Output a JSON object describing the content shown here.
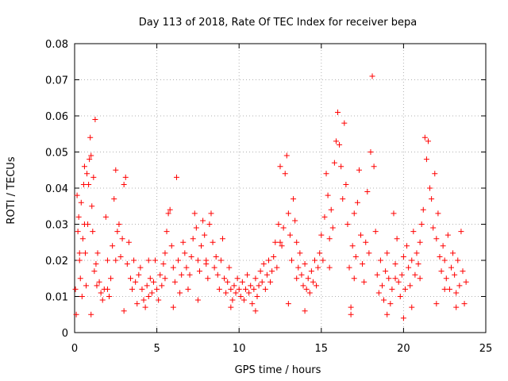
{
  "chart_data": {
    "type": "scatter",
    "title": "Day 113 of 2018, Rate Of TEC Index for receiver bepa",
    "xlabel": "GPS time / hours",
    "ylabel": "ROTI / TECUs",
    "xlim": [
      0,
      25
    ],
    "ylim": [
      0,
      0.08
    ],
    "x_ticks": [
      0,
      5,
      10,
      15,
      20,
      25
    ],
    "y_ticks": [
      0,
      0.01,
      0.02,
      0.03,
      0.04,
      0.05,
      0.06,
      0.07,
      0.08
    ],
    "x_tick_labels": [
      "0",
      "5",
      "10",
      "15",
      "20",
      "25"
    ],
    "y_tick_labels": [
      "0",
      "0.01",
      "0.02",
      "0.03",
      "0.04",
      "0.05",
      "0.06",
      "0.07",
      "0.08"
    ],
    "grid": true,
    "marker": "+",
    "color": "#ff0000",
    "series": [
      {
        "name": "ROTI",
        "points": [
          [
            0.05,
            0.012
          ],
          [
            0.1,
            0.005
          ],
          [
            0.15,
            0.038
          ],
          [
            0.2,
            0.028
          ],
          [
            0.25,
            0.032
          ],
          [
            0.3,
            0.02
          ],
          [
            0.35,
            0.015
          ],
          [
            0.4,
            0.036
          ],
          [
            0.45,
            0.01
          ],
          [
            0.5,
            0.026
          ],
          [
            0.55,
            0.041
          ],
          [
            0.6,
            0.046
          ],
          [
            0.65,
            0.022
          ],
          [
            0.7,
            0.013
          ],
          [
            0.75,
            0.044
          ],
          [
            0.8,
            0.03
          ],
          [
            0.85,
            0.041
          ],
          [
            0.9,
            0.048
          ],
          [
            0.95,
            0.054
          ],
          [
            1.0,
            0.049
          ],
          [
            1.05,
            0.035
          ],
          [
            1.1,
            0.028
          ],
          [
            1.15,
            0.043
          ],
          [
            1.2,
            0.017
          ],
          [
            1.25,
            0.059
          ],
          [
            1.3,
            0.019
          ],
          [
            1.35,
            0.013
          ],
          [
            1.4,
            0.022
          ],
          [
            1.5,
            0.014
          ],
          [
            1.6,
            0.011
          ],
          [
            1.7,
            0.009
          ],
          [
            1.8,
            0.012
          ],
          [
            1.9,
            0.032
          ],
          [
            2.0,
            0.012
          ],
          [
            2.1,
            0.01
          ],
          [
            2.2,
            0.015
          ],
          [
            2.3,
            0.024
          ],
          [
            2.4,
            0.037
          ],
          [
            2.5,
            0.045
          ],
          [
            2.6,
            0.028
          ],
          [
            2.7,
            0.03
          ],
          [
            2.8,
            0.021
          ],
          [
            2.9,
            0.026
          ],
          [
            3.0,
            0.041
          ],
          [
            3.1,
            0.043
          ],
          [
            3.2,
            0.019
          ],
          [
            3.3,
            0.025
          ],
          [
            3.4,
            0.015
          ],
          [
            3.5,
            0.012
          ],
          [
            3.6,
            0.02
          ],
          [
            3.7,
            0.014
          ],
          [
            3.8,
            0.008
          ],
          [
            3.9,
            0.016
          ],
          [
            4.0,
            0.018
          ],
          [
            4.1,
            0.012
          ],
          [
            4.2,
            0.009
          ],
          [
            4.3,
            0.007
          ],
          [
            4.4,
            0.013
          ],
          [
            4.5,
            0.01
          ],
          [
            4.6,
            0.015
          ],
          [
            4.7,
            0.011
          ],
          [
            4.8,
            0.014
          ],
          [
            4.9,
            0.02
          ],
          [
            5.0,
            0.012
          ],
          [
            5.1,
            0.009
          ],
          [
            5.2,
            0.016
          ],
          [
            5.3,
            0.013
          ],
          [
            5.4,
            0.019
          ],
          [
            5.5,
            0.022
          ],
          [
            5.6,
            0.028
          ],
          [
            5.7,
            0.033
          ],
          [
            5.8,
            0.034
          ],
          [
            5.9,
            0.024
          ],
          [
            6.0,
            0.018
          ],
          [
            6.1,
            0.014
          ],
          [
            6.2,
            0.043
          ],
          [
            6.3,
            0.02
          ],
          [
            6.4,
            0.011
          ],
          [
            6.5,
            0.016
          ],
          [
            6.6,
            0.025
          ],
          [
            6.7,
            0.022
          ],
          [
            6.8,
            0.018
          ],
          [
            6.9,
            0.012
          ],
          [
            7.0,
            0.016
          ],
          [
            7.1,
            0.021
          ],
          [
            7.2,
            0.026
          ],
          [
            7.3,
            0.033
          ],
          [
            7.4,
            0.029
          ],
          [
            7.5,
            0.02
          ],
          [
            7.6,
            0.017
          ],
          [
            7.7,
            0.024
          ],
          [
            7.8,
            0.031
          ],
          [
            7.9,
            0.027
          ],
          [
            8.0,
            0.019
          ],
          [
            8.1,
            0.015
          ],
          [
            8.2,
            0.03
          ],
          [
            8.3,
            0.033
          ],
          [
            8.4,
            0.025
          ],
          [
            8.5,
            0.018
          ],
          [
            8.6,
            0.021
          ],
          [
            8.7,
            0.016
          ],
          [
            8.8,
            0.012
          ],
          [
            8.9,
            0.02
          ],
          [
            9.0,
            0.026
          ],
          [
            9.1,
            0.015
          ],
          [
            9.2,
            0.011
          ],
          [
            9.3,
            0.014
          ],
          [
            9.4,
            0.018
          ],
          [
            9.5,
            0.012
          ],
          [
            9.6,
            0.009
          ],
          [
            9.7,
            0.013
          ],
          [
            9.8,
            0.011
          ],
          [
            9.9,
            0.015
          ],
          [
            10.0,
            0.012
          ],
          [
            10.1,
            0.01
          ],
          [
            10.2,
            0.014
          ],
          [
            10.3,
            0.009
          ],
          [
            10.4,
            0.012
          ],
          [
            10.5,
            0.016
          ],
          [
            10.6,
            0.011
          ],
          [
            10.7,
            0.013
          ],
          [
            10.8,
            0.008
          ],
          [
            10.9,
            0.012
          ],
          [
            11.0,
            0.015
          ],
          [
            11.1,
            0.01
          ],
          [
            11.2,
            0.013
          ],
          [
            11.3,
            0.017
          ],
          [
            11.4,
            0.014
          ],
          [
            11.5,
            0.019
          ],
          [
            11.6,
            0.012
          ],
          [
            11.7,
            0.016
          ],
          [
            11.8,
            0.02
          ],
          [
            11.9,
            0.014
          ],
          [
            12.0,
            0.017
          ],
          [
            12.1,
            0.021
          ],
          [
            12.2,
            0.025
          ],
          [
            12.3,
            0.018
          ],
          [
            12.4,
            0.03
          ],
          [
            12.5,
            0.046
          ],
          [
            12.6,
            0.024
          ],
          [
            12.7,
            0.029
          ],
          [
            12.8,
            0.044
          ],
          [
            12.9,
            0.049
          ],
          [
            13.0,
            0.033
          ],
          [
            13.1,
            0.027
          ],
          [
            13.2,
            0.02
          ],
          [
            13.3,
            0.037
          ],
          [
            13.4,
            0.031
          ],
          [
            13.5,
            0.025
          ],
          [
            13.6,
            0.018
          ],
          [
            13.7,
            0.022
          ],
          [
            13.8,
            0.016
          ],
          [
            13.9,
            0.013
          ],
          [
            14.0,
            0.019
          ],
          [
            14.1,
            0.012
          ],
          [
            14.2,
            0.015
          ],
          [
            14.3,
            0.011
          ],
          [
            14.4,
            0.017
          ],
          [
            14.5,
            0.014
          ],
          [
            14.6,
            0.02
          ],
          [
            14.7,
            0.013
          ],
          [
            14.8,
            0.018
          ],
          [
            14.9,
            0.022
          ],
          [
            15.0,
            0.027
          ],
          [
            15.1,
            0.02
          ],
          [
            15.2,
            0.032
          ],
          [
            15.3,
            0.044
          ],
          [
            15.4,
            0.038
          ],
          [
            15.5,
            0.026
          ],
          [
            15.6,
            0.034
          ],
          [
            15.7,
            0.029
          ],
          [
            15.8,
            0.047
          ],
          [
            15.9,
            0.053
          ],
          [
            16.0,
            0.061
          ],
          [
            16.1,
            0.052
          ],
          [
            16.2,
            0.046
          ],
          [
            16.3,
            0.037
          ],
          [
            16.4,
            0.058
          ],
          [
            16.5,
            0.041
          ],
          [
            16.6,
            0.03
          ],
          [
            16.7,
            0.018
          ],
          [
            16.8,
            0.007
          ],
          [
            16.9,
            0.024
          ],
          [
            17.0,
            0.033
          ],
          [
            17.1,
            0.021
          ],
          [
            17.2,
            0.036
          ],
          [
            17.3,
            0.045
          ],
          [
            17.4,
            0.027
          ],
          [
            17.5,
            0.019
          ],
          [
            17.6,
            0.014
          ],
          [
            17.7,
            0.025
          ],
          [
            17.8,
            0.039
          ],
          [
            17.9,
            0.022
          ],
          [
            18.0,
            0.05
          ],
          [
            18.1,
            0.071
          ],
          [
            18.2,
            0.046
          ],
          [
            18.3,
            0.028
          ],
          [
            18.4,
            0.016
          ],
          [
            18.5,
            0.011
          ],
          [
            18.6,
            0.02
          ],
          [
            18.7,
            0.013
          ],
          [
            18.8,
            0.009
          ],
          [
            18.9,
            0.017
          ],
          [
            19.0,
            0.022
          ],
          [
            19.1,
            0.015
          ],
          [
            19.2,
            0.008
          ],
          [
            19.3,
            0.012
          ],
          [
            19.4,
            0.033
          ],
          [
            19.5,
            0.019
          ],
          [
            19.6,
            0.026
          ],
          [
            19.7,
            0.014
          ],
          [
            19.8,
            0.01
          ],
          [
            19.9,
            0.016
          ],
          [
            20.0,
            0.021
          ],
          [
            20.1,
            0.012
          ],
          [
            20.2,
            0.024
          ],
          [
            20.3,
            0.018
          ],
          [
            20.4,
            0.013
          ],
          [
            20.5,
            0.02
          ],
          [
            20.6,
            0.028
          ],
          [
            20.7,
            0.016
          ],
          [
            20.8,
            0.022
          ],
          [
            20.9,
            0.019
          ],
          [
            21.0,
            0.025
          ],
          [
            21.1,
            0.03
          ],
          [
            21.2,
            0.034
          ],
          [
            21.3,
            0.054
          ],
          [
            21.4,
            0.048
          ],
          [
            21.5,
            0.053
          ],
          [
            21.6,
            0.04
          ],
          [
            21.7,
            0.037
          ],
          [
            21.8,
            0.029
          ],
          [
            21.9,
            0.044
          ],
          [
            22.0,
            0.026
          ],
          [
            22.1,
            0.033
          ],
          [
            22.2,
            0.021
          ],
          [
            22.3,
            0.017
          ],
          [
            22.4,
            0.024
          ],
          [
            22.5,
            0.02
          ],
          [
            22.6,
            0.015
          ],
          [
            22.7,
            0.027
          ],
          [
            22.8,
            0.012
          ],
          [
            22.9,
            0.018
          ],
          [
            23.0,
            0.022
          ],
          [
            23.1,
            0.016
          ],
          [
            23.2,
            0.011
          ],
          [
            23.3,
            0.02
          ],
          [
            23.4,
            0.013
          ],
          [
            23.5,
            0.028
          ],
          [
            23.6,
            0.017
          ],
          [
            23.7,
            0.008
          ],
          [
            23.8,
            0.014
          ],
          [
            1.0,
            0.005
          ],
          [
            3.0,
            0.006
          ],
          [
            6.0,
            0.007
          ],
          [
            7.5,
            0.009
          ],
          [
            9.5,
            0.007
          ],
          [
            11.0,
            0.006
          ],
          [
            13.0,
            0.008
          ],
          [
            14.0,
            0.006
          ],
          [
            16.8,
            0.005
          ],
          [
            19.0,
            0.005
          ],
          [
            20.0,
            0.004
          ],
          [
            20.5,
            0.007
          ],
          [
            22.0,
            0.008
          ],
          [
            23.2,
            0.007
          ],
          [
            0.3,
            0.022
          ],
          [
            0.6,
            0.03
          ],
          [
            2.0,
            0.02
          ],
          [
            2.5,
            0.02
          ],
          [
            4.5,
            0.02
          ],
          [
            5.5,
            0.015
          ],
          [
            8.0,
            0.02
          ],
          [
            12.5,
            0.025
          ],
          [
            13.5,
            0.015
          ],
          [
            15.5,
            0.018
          ],
          [
            17.0,
            0.015
          ],
          [
            19.5,
            0.015
          ],
          [
            21.0,
            0.015
          ],
          [
            22.5,
            0.012
          ]
        ]
      }
    ]
  }
}
